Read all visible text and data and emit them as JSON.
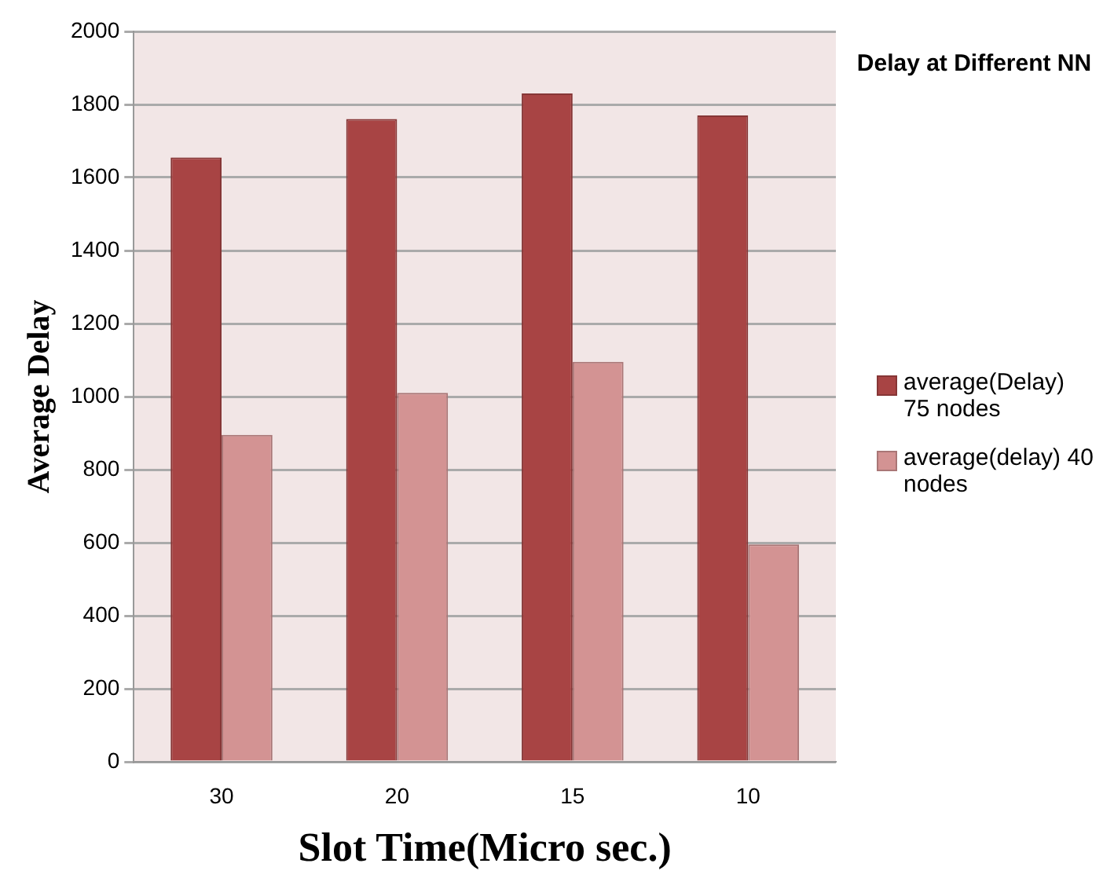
{
  "chart_data": {
    "type": "bar",
    "legend_title": "Delay at Different NN",
    "xlabel": "Slot Time(Micro sec.)",
    "ylabel": "Average Delay",
    "categories": [
      "30",
      "20",
      "15",
      "10"
    ],
    "series": [
      {
        "name": "average(Delay) 75 nodes",
        "color": "#a84444",
        "values": [
          1655,
          1760,
          1830,
          1770
        ]
      },
      {
        "name": "average(delay) 40 nodes",
        "color": "#d39393",
        "values": [
          895,
          1010,
          1095,
          595
        ]
      }
    ],
    "ylim": [
      0,
      2000
    ],
    "yticks": [
      0,
      200,
      400,
      600,
      800,
      1000,
      1200,
      1400,
      1600,
      1800,
      2000
    ],
    "grid": "y",
    "legend": "right"
  }
}
